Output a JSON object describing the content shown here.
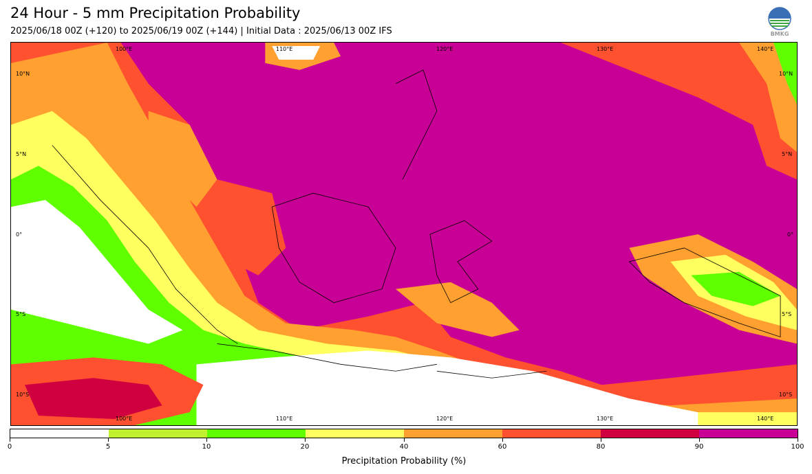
{
  "header": {
    "title": "24 Hour - 5 mm Precipitation Probability",
    "subtitle": "2025/06/18 00Z (+120) to 2025/06/19 00Z (+144) | Initial Data : 2025/06/13 00Z IFS"
  },
  "logo": {
    "text": "BMKG"
  },
  "map": {
    "lon_labels": [
      "100°E",
      "110°E",
      "120°E",
      "130°E",
      "140°E"
    ],
    "lat_labels": [
      "10°N",
      "5°N",
      "0°",
      "5°S",
      "10°S"
    ],
    "colors": {
      "white": "#ffffff",
      "yellow_green": "#c0f030",
      "green": "#60ff00",
      "yellow": "#ffff60",
      "orange": "#ffa030",
      "red_orange": "#ff5030",
      "crimson": "#d00040",
      "magenta": "#c80095"
    }
  },
  "colorbar": {
    "title": "Precipitation Probability (%)",
    "ticks": [
      "0",
      "5",
      "10",
      "20",
      "40",
      "60",
      "80",
      "90",
      "100"
    ],
    "colors": [
      "#ffffff",
      "#c0f030",
      "#60ff00",
      "#ffff60",
      "#ffa030",
      "#ff5030",
      "#d00040",
      "#c80095"
    ]
  }
}
